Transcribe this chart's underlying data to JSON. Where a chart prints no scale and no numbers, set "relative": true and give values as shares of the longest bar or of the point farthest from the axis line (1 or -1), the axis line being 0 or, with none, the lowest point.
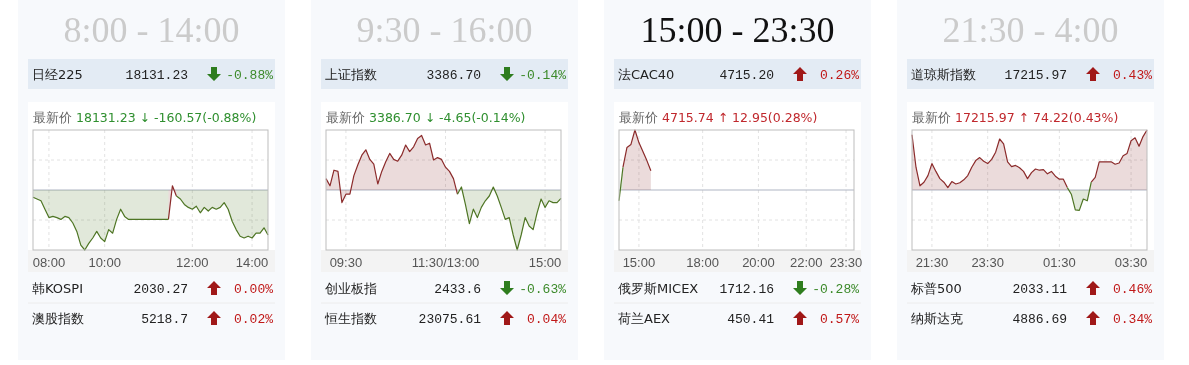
{
  "chart_data": [
    {
      "type": "area",
      "relative": true,
      "grid": true,
      "title": "8:00 - 14:00",
      "subtitle": "最新价 18131.23 ↓ -160.57(-0.88%)",
      "annotations": [
        "日经225",
        "18131.23",
        "-0.88%",
        "韩KOSPI",
        "2030.27",
        "0.00%",
        "澳股指数",
        "5218.7",
        "0.02%"
      ],
      "ref_lines": [
        {
          "axis": "y",
          "value": 0,
          "color": "#b0b6c4"
        }
      ],
      "categories": [
        null,
        null,
        null,
        null,
        "08:00",
        null,
        null,
        null,
        null,
        null,
        null,
        null,
        null,
        null,
        null,
        null,
        null,
        null,
        "10:00",
        null,
        null,
        null,
        null,
        null,
        null,
        null,
        null,
        null,
        null,
        null,
        null,
        null,
        null,
        null,
        null,
        null,
        null,
        null,
        null,
        null,
        "12:00",
        null,
        null,
        null,
        null,
        null,
        null,
        null,
        null,
        null,
        null,
        null,
        null,
        null,
        null,
        "14:00",
        null,
        null,
        null,
        null
      ],
      "series": [
        {
          "color": "#8b2b2b",
          "values": [
            null,
            null,
            null,
            null,
            null,
            null,
            null,
            null,
            null,
            null,
            null,
            null,
            null,
            null,
            null,
            null,
            null,
            null,
            null,
            null,
            null,
            null,
            null,
            null,
            null,
            null,
            null,
            null,
            null,
            null,
            null,
            null,
            null,
            null,
            -0.49,
            0.07,
            -0.1,
            null,
            null,
            null,
            null,
            null,
            null,
            null,
            null,
            null,
            null,
            null,
            null,
            null,
            null,
            null,
            null,
            null,
            null,
            null,
            null,
            null,
            null,
            null
          ]
        },
        {
          "color": "#4e7524",
          "values": [
            -0.12,
            -0.15,
            -0.18,
            -0.32,
            -0.46,
            -0.44,
            -0.46,
            -0.49,
            -0.44,
            -0.46,
            -0.55,
            -0.69,
            -0.92,
            -1,
            -0.89,
            -0.8,
            -0.69,
            -0.8,
            -0.86,
            -0.66,
            -0.72,
            -0.49,
            -0.32,
            -0.44,
            -0.49,
            -0.49,
            -0.49,
            -0.49,
            -0.49,
            -0.49,
            -0.49,
            -0.49,
            -0.49,
            -0.49,
            -0.49,
            null,
            -0.1,
            -0.15,
            -0.24,
            -0.29,
            -0.32,
            -0.27,
            -0.38,
            -0.29,
            -0.35,
            -0.29,
            -0.32,
            -0.29,
            -0.21,
            -0.32,
            -0.52,
            -0.66,
            -0.77,
            -0.8,
            -0.77,
            -0.8,
            -0.72,
            -0.72,
            -0.63,
            -0.75
          ]
        }
      ]
    },
    {
      "type": "area",
      "relative": true,
      "grid": true,
      "title": "9:30 - 16:00",
      "subtitle": "最新价 3386.70 ↓ -4.65(-0.14%)",
      "annotations": [
        "上证指数",
        "3386.70",
        "-0.14%",
        "创业板指",
        "2433.6",
        "-0.63%",
        "恒生指数",
        "23075.61",
        "0.04%"
      ],
      "ref_lines": [
        {
          "axis": "y",
          "value": 0,
          "color": "#b0b6c4"
        }
      ],
      "categories": [
        null,
        null,
        null,
        null,
        null,
        "09:30",
        null,
        null,
        null,
        null,
        null,
        null,
        null,
        null,
        null,
        null,
        null,
        null,
        null,
        null,
        null,
        null,
        null,
        null,
        null,
        null,
        null,
        null,
        null,
        null,
        "11:30/13:00",
        null,
        null,
        null,
        null,
        null,
        null,
        null,
        null,
        null,
        null,
        null,
        null,
        null,
        null,
        null,
        null,
        null,
        null,
        null,
        null,
        null,
        null,
        null,
        null,
        "15:00",
        null,
        null,
        null,
        null
      ],
      "series": [
        {
          "color": "#8b2b2b",
          "values": [
            0.19,
            0.07,
            0.33,
            0.31,
            -0.21,
            -0.07,
            -0.07,
            0.24,
            0.42,
            0.58,
            0.67,
            0.51,
            0.43,
            0.1,
            0.31,
            0.47,
            0.61,
            0.51,
            0.48,
            0.58,
            0.75,
            0.64,
            0.72,
            0.86,
            0.91,
            0.75,
            0.78,
            0.5,
            0.54,
            0.51,
            0.38,
            0.31,
            0.19,
            -0.07,
            null,
            null,
            null,
            null,
            null,
            null,
            null,
            null,
            null,
            null,
            null,
            null,
            null,
            null,
            null,
            null,
            null,
            null,
            null,
            null,
            null,
            null,
            null,
            null,
            null,
            null
          ]
        },
        {
          "color": "#4e7524",
          "values": [
            null,
            null,
            null,
            null,
            null,
            null,
            null,
            null,
            null,
            null,
            null,
            null,
            null,
            null,
            null,
            null,
            null,
            null,
            null,
            null,
            null,
            null,
            null,
            null,
            null,
            null,
            null,
            null,
            null,
            null,
            null,
            null,
            null,
            -0.07,
            0.05,
            -0.24,
            -0.56,
            -0.32,
            -0.46,
            -0.29,
            -0.18,
            -0.1,
            0.05,
            -0.1,
            -0.29,
            -0.49,
            -0.46,
            -0.75,
            -1,
            -0.75,
            -0.46,
            -0.6,
            -0.66,
            -0.38,
            -0.15,
            -0.29,
            -0.18,
            -0.21,
            -0.21,
            -0.14
          ]
        }
      ]
    },
    {
      "type": "area",
      "relative": true,
      "grid": true,
      "title": "15:00 - 23:30",
      "subtitle": "最新价 4715.74 ↑ 12.95(0.28%)",
      "annotations": [
        "法CAC40",
        "4715.20",
        "0.26%",
        "俄罗斯MICEX",
        "1712.16",
        "-0.28%",
        "荷兰AEX",
        "450.41",
        "0.57%"
      ],
      "ref_lines": [
        {
          "axis": "y",
          "value": 0,
          "color": "#b0b6c4"
        }
      ],
      "categories": [
        null,
        null,
        null,
        null,
        null,
        "15:00",
        null,
        null,
        null,
        null,
        null,
        null,
        null,
        null,
        null,
        null,
        null,
        null,
        null,
        null,
        null,
        "18:00",
        null,
        null,
        null,
        null,
        null,
        null,
        null,
        null,
        null,
        null,
        null,
        null,
        null,
        "20:00",
        null,
        null,
        null,
        null,
        null,
        null,
        null,
        null,
        null,
        null,
        null,
        "22:00",
        null,
        null,
        null,
        null,
        null,
        null,
        null,
        null,
        null,
        "23:30",
        null,
        null
      ],
      "series": [
        {
          "color": "#8b2b2b",
          "values": [
            null,
            0.38,
            0.71,
            0.76,
            1,
            0.79,
            0.64,
            0.49,
            0.32,
            null,
            null,
            null,
            null,
            null,
            null,
            null,
            null,
            null,
            null,
            null,
            null,
            null,
            null,
            null,
            null,
            null,
            null,
            null,
            null,
            null,
            null,
            null,
            null,
            null,
            null,
            null,
            null,
            null,
            null,
            null,
            null,
            null,
            null,
            null,
            null,
            null,
            null,
            null,
            null,
            null,
            null,
            null,
            null,
            null,
            null,
            null,
            null,
            null,
            null,
            null
          ]
        },
        {
          "color": "#4e7524",
          "values": [
            -0.18,
            0.38,
            null,
            null,
            null,
            null,
            null,
            null,
            null,
            null,
            null,
            null,
            null,
            null,
            null,
            null,
            null,
            null,
            null,
            null,
            null,
            null,
            null,
            null,
            null,
            null,
            null,
            null,
            null,
            null,
            null,
            null,
            null,
            null,
            null,
            null,
            null,
            null,
            null,
            null,
            null,
            null,
            null,
            null,
            null,
            null,
            null,
            null,
            null,
            null,
            null,
            null,
            null,
            null,
            null,
            null,
            null,
            null,
            null,
            null
          ]
        }
      ]
    },
    {
      "type": "area",
      "relative": true,
      "grid": true,
      "title": "21:30 - 4:00",
      "subtitle": "最新价 17215.97 ↑ 74.22(0.43%)",
      "annotations": [
        "道琼斯指数",
        "17215.97",
        "0.43%",
        "标普500",
        "2033.11",
        "0.46%",
        "纳斯达克",
        "4886.69",
        "0.34%"
      ],
      "ref_lines": [
        {
          "axis": "y",
          "value": 0,
          "color": "#b0b6c4"
        }
      ],
      "categories": [
        null,
        null,
        null,
        null,
        null,
        "21:30",
        null,
        null,
        null,
        null,
        null,
        null,
        null,
        null,
        null,
        null,
        null,
        null,
        null,
        "23:30",
        null,
        null,
        null,
        null,
        null,
        null,
        null,
        null,
        null,
        null,
        null,
        null,
        null,
        null,
        null,
        null,
        null,
        "01:30",
        null,
        null,
        null,
        null,
        null,
        null,
        null,
        null,
        null,
        null,
        null,
        null,
        null,
        null,
        null,
        null,
        null,
        "03:30",
        null,
        null,
        null,
        null
      ],
      "series": [
        {
          "color": "#8b2b2b",
          "values": [
            0.92,
            0.38,
            0.07,
            0.13,
            0.24,
            0.44,
            0.31,
            0.19,
            0.13,
            0.04,
            0.14,
            0.1,
            0.12,
            0.17,
            0.24,
            0.38,
            0.49,
            0.54,
            0.48,
            0.44,
            0.51,
            0.63,
            0.85,
            0.77,
            0.47,
            0.39,
            0.41,
            0.37,
            0.31,
            0.19,
            0.29,
            0.35,
            0.33,
            0.34,
            0.27,
            0.31,
            0.23,
            0.18,
            0.18,
            0.04,
            null,
            null,
            null,
            null,
            null,
            0.13,
            0.21,
            0.47,
            0.47,
            0.47,
            0.47,
            0.43,
            0.45,
            0.57,
            0.61,
            0.82,
            0.87,
            0.73,
            0.89,
            1
          ]
        },
        {
          "color": "#4e7524",
          "values": [
            null,
            null,
            null,
            null,
            null,
            null,
            null,
            null,
            null,
            null,
            null,
            null,
            null,
            null,
            null,
            null,
            null,
            null,
            null,
            null,
            null,
            null,
            null,
            null,
            null,
            null,
            null,
            null,
            null,
            null,
            null,
            null,
            null,
            null,
            null,
            null,
            null,
            null,
            null,
            0.04,
            -0.07,
            -0.33,
            -0.34,
            -0.15,
            -0.18,
            0.13,
            null,
            null,
            null,
            null,
            null,
            null,
            null,
            null,
            null,
            null,
            null,
            null,
            null,
            null
          ]
        }
      ]
    }
  ]
}
